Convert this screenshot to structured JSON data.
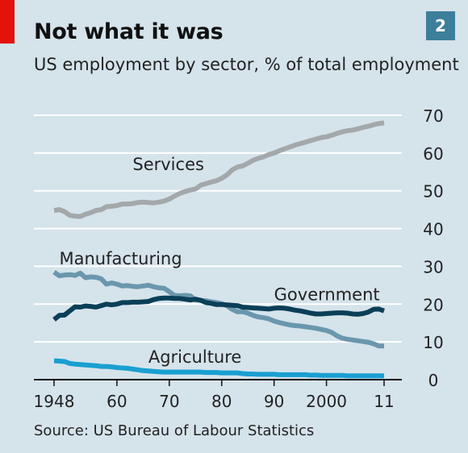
{
  "chart_data": {
    "type": "line",
    "title": "Not what it was",
    "subtitle": "US employment by sector, % of total employment",
    "badge": "2",
    "source": "Source: US Bureau of Labour Statistics",
    "y_ticks": [
      "0",
      "10",
      "20",
      "30",
      "40",
      "50",
      "60",
      "70"
    ],
    "x_ticks": [
      "1948",
      "60",
      "70",
      "80",
      "90",
      "2000",
      "11"
    ],
    "x_tick_years": [
      1948,
      1960,
      1970,
      1980,
      1990,
      2000,
      2011
    ],
    "ylim": [
      0,
      70
    ],
    "xlim": [
      1948,
      2011
    ],
    "grid": true,
    "y_axis_side": "right",
    "colors": {
      "background": "#d5e3eb",
      "grid": "#ffffff",
      "axis": "#111111",
      "services": "#a3a8ab",
      "manufacturing": "#6a97ad",
      "government": "#0b3f57",
      "agriculture": "#1a9fd1"
    },
    "series": [
      {
        "name": "Services",
        "x": [
          1948,
          1949,
          1950,
          1951,
          1952,
          1953,
          1954,
          1955,
          1956,
          1957,
          1958,
          1959,
          1960,
          1961,
          1962,
          1963,
          1964,
          1965,
          1966,
          1967,
          1968,
          1969,
          1970,
          1971,
          1972,
          1973,
          1974,
          1975,
          1976,
          1977,
          1978,
          1979,
          1980,
          1981,
          1982,
          1983,
          1984,
          1985,
          1986,
          1987,
          1988,
          1989,
          1990,
          1991,
          1992,
          1993,
          1994,
          1995,
          1996,
          1997,
          1998,
          1999,
          2000,
          2001,
          2002,
          2003,
          2004,
          2005,
          2006,
          2007,
          2008,
          2009,
          2010,
          2011
        ],
        "values": [
          44.8,
          45.0,
          44.5,
          43.5,
          43.3,
          43.2,
          43.8,
          44.2,
          44.8,
          45.0,
          45.8,
          45.9,
          46.1,
          46.5,
          46.5,
          46.6,
          46.9,
          47.0,
          46.9,
          46.8,
          47.0,
          47.3,
          47.8,
          48.6,
          49.3,
          49.8,
          50.2,
          50.5,
          51.5,
          51.9,
          52.3,
          52.7,
          53.3,
          54.2,
          55.5,
          56.3,
          56.6,
          57.3,
          58.1,
          58.6,
          59.0,
          59.6,
          60.0,
          60.6,
          61.1,
          61.6,
          62.1,
          62.5,
          62.9,
          63.3,
          63.7,
          64.1,
          64.3,
          64.7,
          65.2,
          65.6,
          65.9,
          66.1,
          66.4,
          66.8,
          67.1,
          67.5,
          67.8,
          68.0
        ]
      },
      {
        "name": "Manufacturing",
        "x": [
          1948,
          1949,
          1950,
          1951,
          1952,
          1953,
          1954,
          1955,
          1956,
          1957,
          1958,
          1959,
          1960,
          1961,
          1962,
          1963,
          1964,
          1965,
          1966,
          1967,
          1968,
          1969,
          1970,
          1971,
          1972,
          1973,
          1974,
          1975,
          1976,
          1977,
          1978,
          1979,
          1980,
          1981,
          1982,
          1983,
          1984,
          1985,
          1986,
          1987,
          1988,
          1989,
          1990,
          1991,
          1992,
          1993,
          1994,
          1995,
          1996,
          1997,
          1998,
          1999,
          2000,
          2001,
          2002,
          2003,
          2004,
          2005,
          2006,
          2007,
          2008,
          2009,
          2010,
          2011
        ],
        "values": [
          28.5,
          27.5,
          27.7,
          27.8,
          27.6,
          28.2,
          27.0,
          27.2,
          27.1,
          26.7,
          25.3,
          25.6,
          25.3,
          24.8,
          24.9,
          24.7,
          24.6,
          24.8,
          25.0,
          24.6,
          24.3,
          24.2,
          23.3,
          22.3,
          22.2,
          22.3,
          22.2,
          21.1,
          21.0,
          20.9,
          20.6,
          20.4,
          20.1,
          19.6,
          18.6,
          18.0,
          18.0,
          17.6,
          17.0,
          16.6,
          16.4,
          16.1,
          15.5,
          15.1,
          14.8,
          14.5,
          14.3,
          14.2,
          14.0,
          13.8,
          13.6,
          13.3,
          13.0,
          12.5,
          11.6,
          11.0,
          10.7,
          10.5,
          10.3,
          10.1,
          9.9,
          9.5,
          8.9,
          8.9
        ]
      },
      {
        "name": "Government",
        "x": [
          1948,
          1949,
          1950,
          1951,
          1952,
          1953,
          1954,
          1955,
          1956,
          1957,
          1958,
          1959,
          1960,
          1961,
          1962,
          1963,
          1964,
          1965,
          1966,
          1967,
          1968,
          1969,
          1970,
          1971,
          1972,
          1973,
          1974,
          1975,
          1976,
          1977,
          1978,
          1979,
          1980,
          1981,
          1982,
          1983,
          1984,
          1985,
          1986,
          1987,
          1988,
          1989,
          1990,
          1991,
          1992,
          1993,
          1994,
          1995,
          1996,
          1997,
          1998,
          1999,
          2000,
          2001,
          2002,
          2003,
          2004,
          2005,
          2006,
          2007,
          2008,
          2009,
          2010,
          2011
        ],
        "values": [
          15.9,
          17.0,
          17.1,
          18.2,
          19.3,
          19.2,
          19.5,
          19.4,
          19.2,
          19.6,
          20.0,
          19.8,
          20.0,
          20.4,
          20.4,
          20.5,
          20.5,
          20.6,
          20.7,
          21.2,
          21.5,
          21.6,
          21.6,
          21.5,
          21.5,
          21.3,
          21.1,
          21.3,
          21.0,
          20.4,
          20.2,
          19.9,
          19.9,
          19.8,
          19.7,
          19.6,
          19.2,
          19.1,
          19.0,
          18.9,
          18.8,
          18.7,
          18.9,
          19.0,
          18.9,
          18.7,
          18.4,
          18.2,
          17.9,
          17.6,
          17.4,
          17.4,
          17.5,
          17.6,
          17.7,
          17.7,
          17.6,
          17.4,
          17.3,
          17.5,
          17.9,
          18.6,
          18.7,
          18.2
        ]
      },
      {
        "name": "Agriculture",
        "x": [
          1948,
          1949,
          1950,
          1951,
          1952,
          1953,
          1954,
          1955,
          1956,
          1957,
          1958,
          1959,
          1960,
          1961,
          1962,
          1963,
          1964,
          1965,
          1966,
          1967,
          1968,
          1969,
          1970,
          1971,
          1972,
          1973,
          1974,
          1975,
          1976,
          1977,
          1978,
          1979,
          1980,
          1981,
          1982,
          1983,
          1984,
          1985,
          1986,
          1987,
          1988,
          1989,
          1990,
          1991,
          1992,
          1993,
          1994,
          1995,
          1996,
          1997,
          1998,
          1999,
          2000,
          2001,
          2002,
          2003,
          2004,
          2005,
          2006,
          2007,
          2008,
          2009,
          2010,
          2011
        ],
        "values": [
          5.0,
          4.9,
          4.8,
          4.3,
          4.1,
          4.0,
          3.9,
          3.8,
          3.7,
          3.5,
          3.5,
          3.4,
          3.2,
          3.1,
          3.0,
          2.8,
          2.6,
          2.4,
          2.3,
          2.2,
          2.1,
          2.0,
          2.0,
          2.0,
          2.0,
          2.0,
          2.0,
          2.0,
          2.0,
          1.9,
          1.9,
          1.9,
          1.8,
          1.8,
          1.8,
          1.8,
          1.6,
          1.5,
          1.5,
          1.4,
          1.4,
          1.4,
          1.4,
          1.3,
          1.3,
          1.3,
          1.3,
          1.3,
          1.3,
          1.2,
          1.2,
          1.1,
          1.1,
          1.1,
          1.1,
          1.1,
          1.0,
          1.0,
          1.0,
          1.0,
          1.0,
          1.0,
          1.0,
          1.0
        ]
      }
    ],
    "series_labels": [
      {
        "series": "Services",
        "text": "Services",
        "x": 1963,
        "y": 55.5
      },
      {
        "series": "Manufacturing",
        "text": "Manufacturing",
        "x": 1949,
        "y": 30.5
      },
      {
        "series": "Government",
        "text": "Government",
        "x": 1990,
        "y": 21.0
      },
      {
        "series": "Agriculture",
        "text": "Agriculture",
        "x": 1966,
        "y": 4.5
      }
    ]
  }
}
